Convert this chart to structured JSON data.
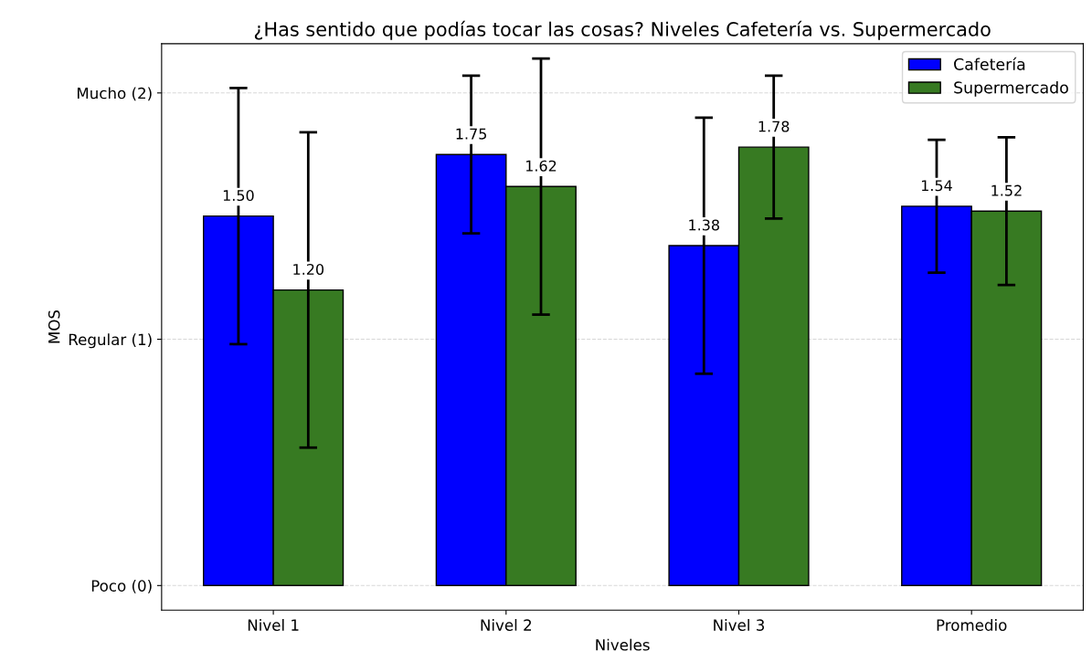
{
  "chart_data": {
    "type": "bar",
    "title": "¿Has sentido que podías tocar las cosas? Niveles Cafetería vs. Supermercado",
    "xlabel": "Niveles",
    "ylabel": "MOS",
    "categories": [
      "Nivel 1",
      "Nivel 2",
      "Nivel 3",
      "Promedio"
    ],
    "series": [
      {
        "name": "Cafetería",
        "color": "#0000ff",
        "values": [
          1.5,
          1.75,
          1.38,
          1.54
        ],
        "errors": [
          0.52,
          0.32,
          0.52,
          0.27
        ],
        "value_labels": [
          "1.50",
          "1.75",
          "1.38",
          "1.54"
        ]
      },
      {
        "name": "Supermercado",
        "color": "#377a22",
        "values": [
          1.2,
          1.62,
          1.78,
          1.52
        ],
        "errors": [
          0.64,
          0.52,
          0.29,
          0.3
        ],
        "value_labels": [
          "1.20",
          "1.62",
          "1.78",
          "1.52"
        ]
      }
    ],
    "ylim": [
      -0.1,
      2.2
    ],
    "yticks": [
      {
        "value": 0,
        "label": "Poco (0)"
      },
      {
        "value": 1,
        "label": "Regular (1)"
      },
      {
        "value": 2,
        "label": "Mucho (2)"
      }
    ],
    "grid": "y",
    "legend": "top right"
  }
}
